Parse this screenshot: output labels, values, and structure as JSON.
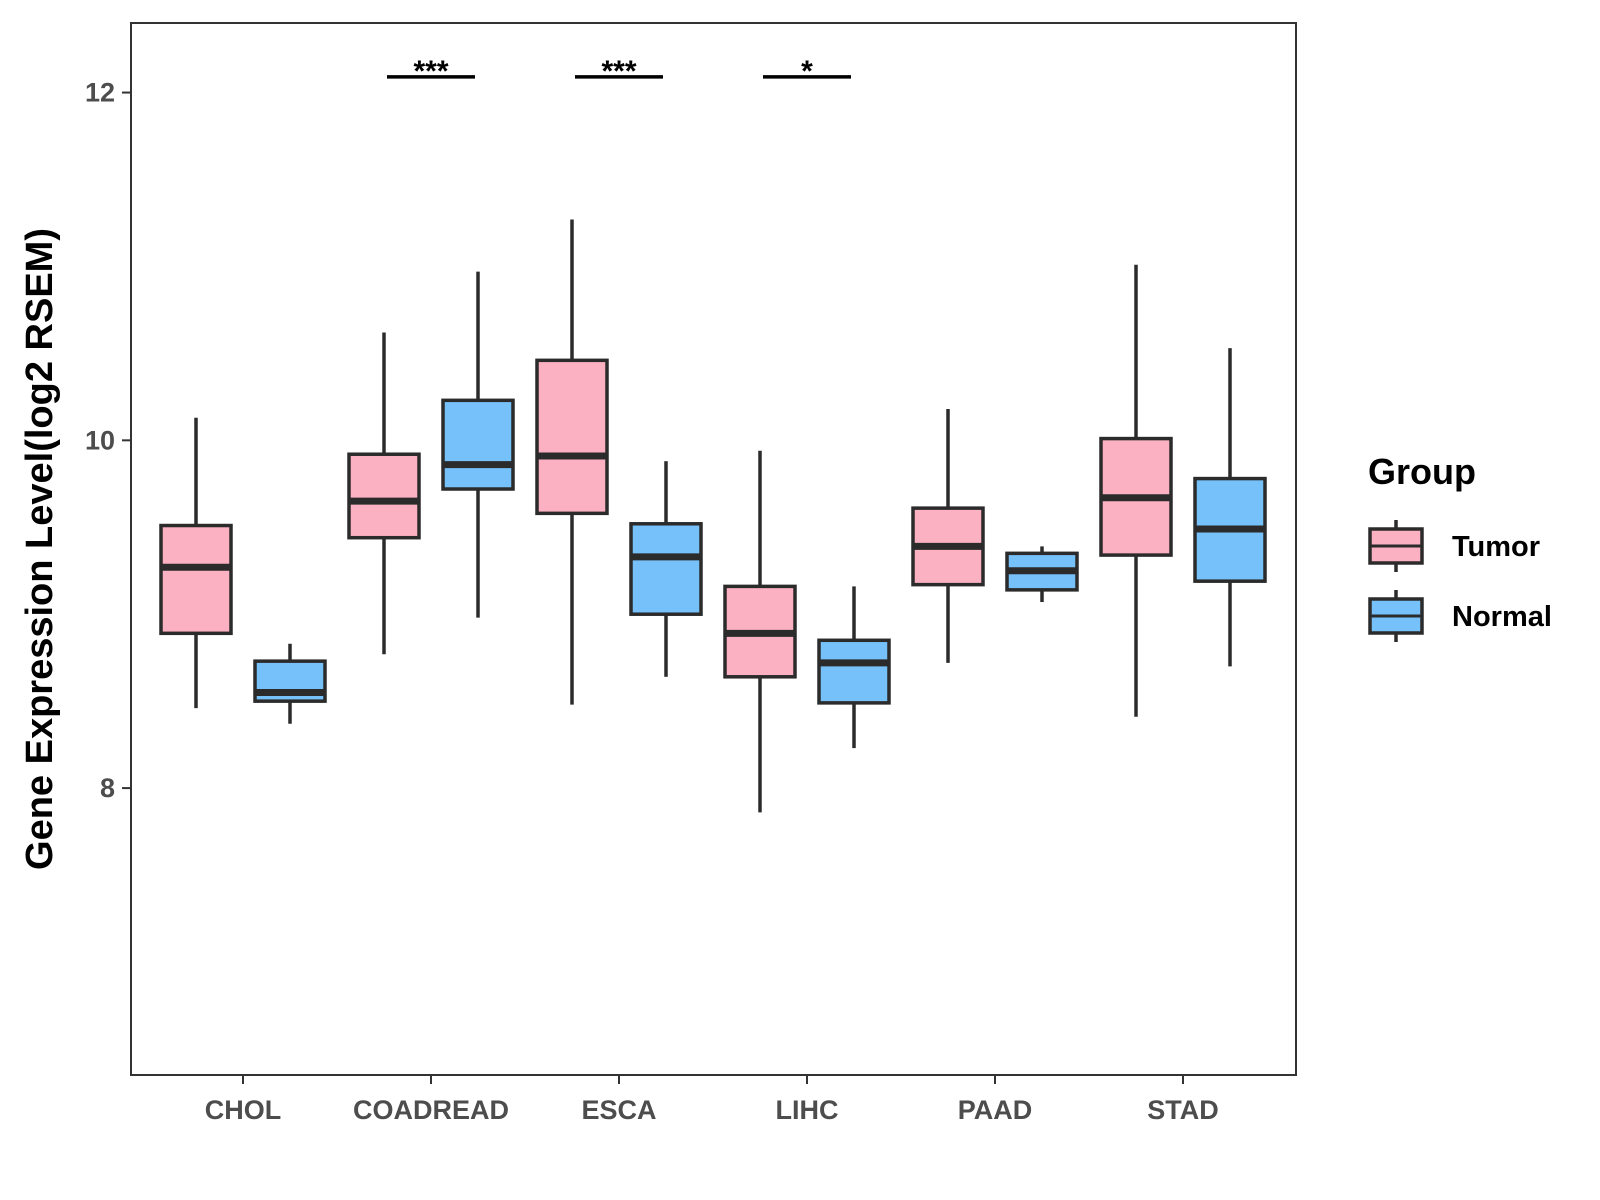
{
  "chart_data": {
    "type": "boxplot",
    "title": "",
    "xlabel": "",
    "ylabel": "Gene Expression Level(log2 RSEM)",
    "ylim": [
      6.35,
      12.4
    ],
    "yticks": [
      8,
      10,
      12
    ],
    "categories": [
      "CHOL",
      "COADREAD",
      "ESCA",
      "LIHC",
      "PAAD",
      "STAD"
    ],
    "legend": {
      "title": "Group",
      "position": "right"
    },
    "series": [
      {
        "name": "Tumor",
        "color": "#FCB1C3",
        "boxes": [
          {
            "category": "CHOL",
            "min": 8.46,
            "q1": 8.89,
            "median": 9.27,
            "q3": 9.51,
            "max": 10.13
          },
          {
            "category": "COADREAD",
            "min": 8.77,
            "q1": 9.44,
            "median": 9.65,
            "q3": 9.92,
            "max": 10.62
          },
          {
            "category": "ESCA",
            "min": 8.48,
            "q1": 9.58,
            "median": 9.91,
            "q3": 10.46,
            "max": 11.27
          },
          {
            "category": "LIHC",
            "min": 7.86,
            "q1": 8.64,
            "median": 8.89,
            "q3": 9.16,
            "max": 9.94
          },
          {
            "category": "PAAD",
            "min": 8.72,
            "q1": 9.17,
            "median": 9.39,
            "q3": 9.61,
            "max": 10.18
          },
          {
            "category": "STAD",
            "min": 8.41,
            "q1": 9.34,
            "median": 9.67,
            "q3": 10.01,
            "max": 11.01
          }
        ]
      },
      {
        "name": "Normal",
        "color": "#77C1FA",
        "boxes": [
          {
            "category": "CHOL",
            "min": 8.37,
            "q1": 8.5,
            "median": 8.55,
            "q3": 8.73,
            "max": 8.83
          },
          {
            "category": "COADREAD",
            "min": 8.98,
            "q1": 9.72,
            "median": 9.86,
            "q3": 10.23,
            "max": 10.97
          },
          {
            "category": "ESCA",
            "min": 8.64,
            "q1": 9.0,
            "median": 9.33,
            "q3": 9.52,
            "max": 9.88
          },
          {
            "category": "LIHC",
            "min": 8.23,
            "q1": 8.49,
            "median": 8.72,
            "q3": 8.85,
            "max": 9.16
          },
          {
            "category": "PAAD",
            "min": 9.07,
            "q1": 9.14,
            "median": 9.25,
            "q3": 9.35,
            "max": 9.39
          },
          {
            "category": "STAD",
            "min": 8.7,
            "q1": 9.19,
            "median": 9.49,
            "q3": 9.78,
            "max": 10.53
          }
        ]
      }
    ],
    "significance": [
      {
        "category": "COADREAD",
        "label": "***",
        "y": 12.09
      },
      {
        "category": "ESCA",
        "label": "***",
        "y": 12.09
      },
      {
        "category": "LIHC",
        "label": "*",
        "y": 12.09
      }
    ]
  }
}
